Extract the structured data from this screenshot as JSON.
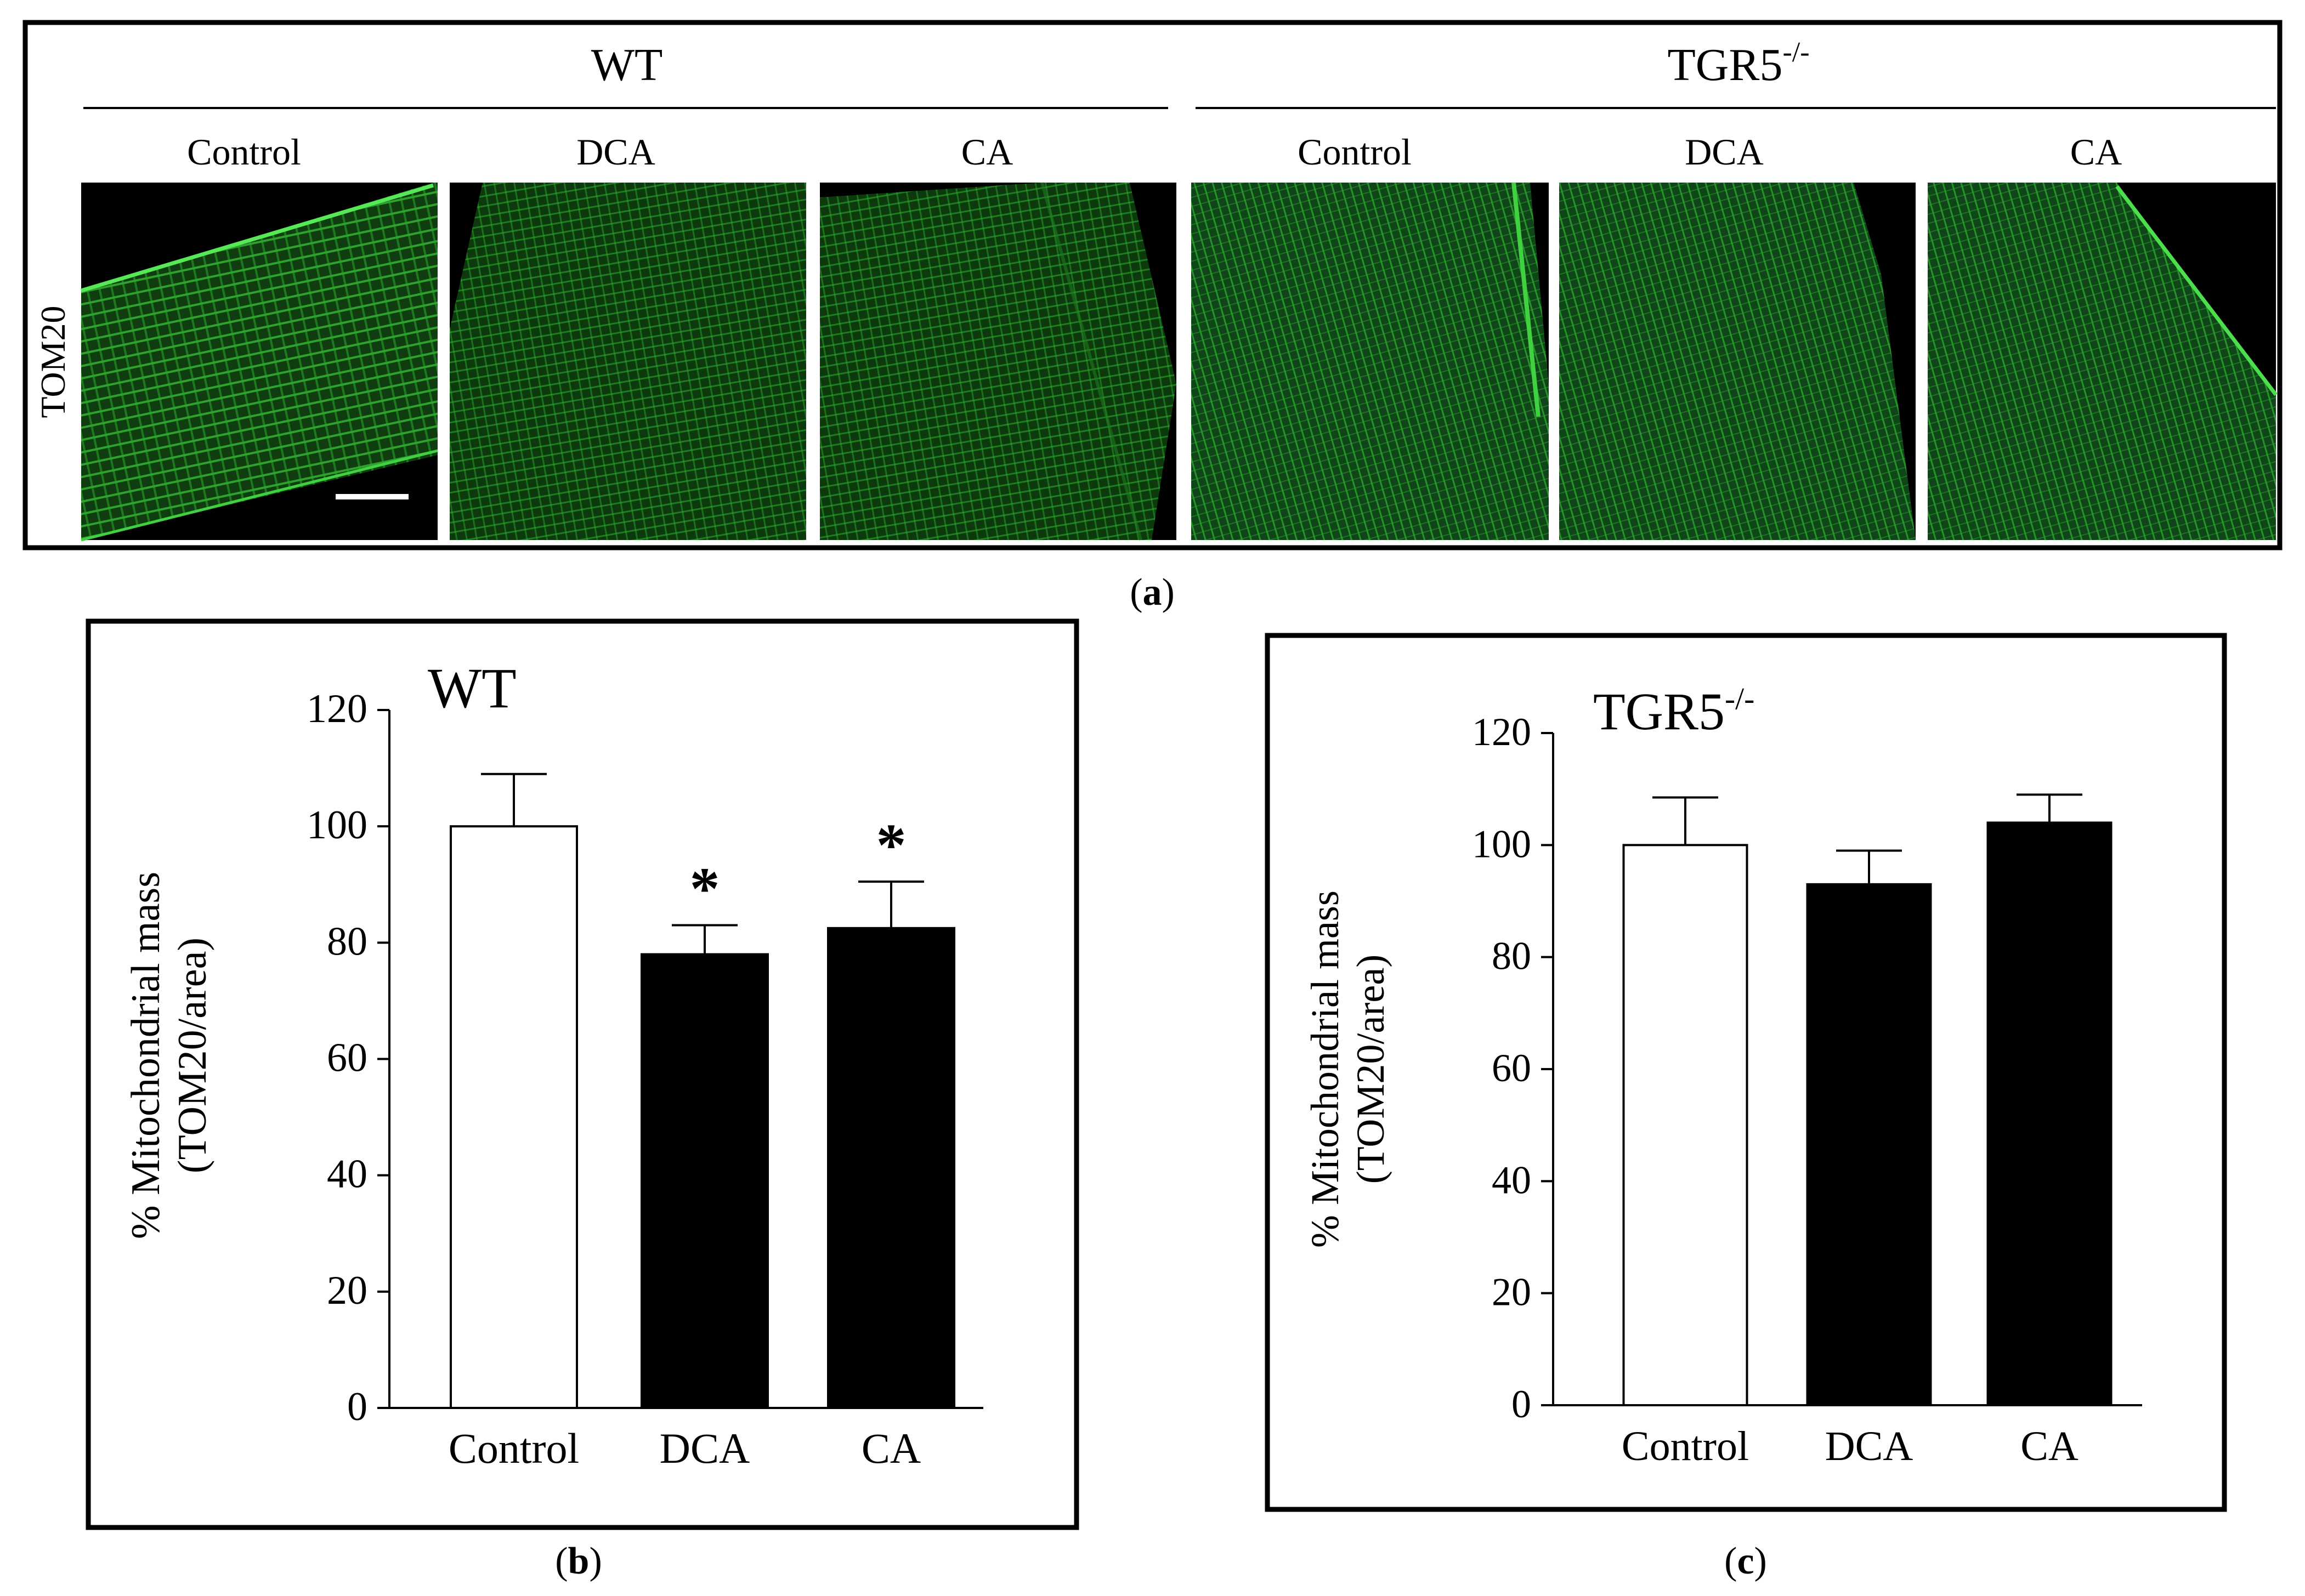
{
  "panel_a": {
    "genotypes": [
      "WT",
      "TGR5"
    ],
    "genotype_superscript": "-/-",
    "conditions": [
      "Control",
      "DCA",
      "CA",
      "Control",
      "DCA",
      "CA"
    ],
    "row_label": "TOM20",
    "fluorescence_color": "#2bd62b",
    "caption": "a"
  },
  "chart_data": [
    {
      "type": "bar",
      "caption": "b",
      "title": "WT",
      "title_superscript": "",
      "ylabel": "% Mitochondrial mass",
      "ylabel2": "(TOM20/area)",
      "categories": [
        "Control",
        "DCA",
        "CA"
      ],
      "values": [
        100,
        78,
        82.5
      ],
      "errors": [
        9,
        5,
        8
      ],
      "bar_colors": [
        "#ffffff",
        "#000000",
        "#000000"
      ],
      "annotations": [
        "",
        "*",
        "*"
      ],
      "ylim": [
        0,
        120
      ],
      "yticks": [
        0,
        20,
        40,
        60,
        80,
        100,
        120
      ]
    },
    {
      "type": "bar",
      "caption": "c",
      "title": "TGR5",
      "title_superscript": "-/-",
      "ylabel": "% Mitochondrial mass",
      "ylabel2": "(TOM20/area)",
      "categories": [
        "Control",
        "DCA",
        "CA"
      ],
      "values": [
        100,
        93,
        104
      ],
      "errors": [
        8.5,
        6,
        5
      ],
      "bar_colors": [
        "#ffffff",
        "#000000",
        "#000000"
      ],
      "annotations": [
        "",
        "",
        ""
      ],
      "ylim": [
        0,
        120
      ],
      "yticks": [
        0,
        20,
        40,
        60,
        80,
        100,
        120
      ]
    }
  ]
}
